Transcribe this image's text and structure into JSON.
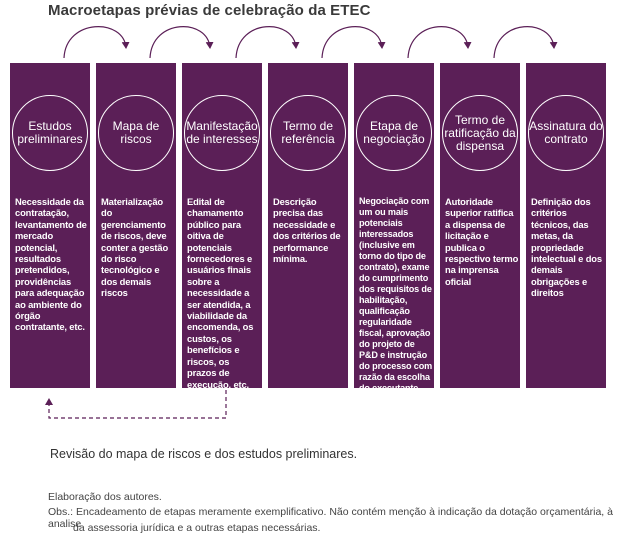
{
  "title": "Macroetapas prévias de celebração da ETEC",
  "steps": [
    {
      "heading": "Estudos preliminares",
      "body": "Necessidade da contratação, levantamento de mercado potencial, resultados pretendidos, providências para adequação ao ambiente do órgão contratante, etc."
    },
    {
      "heading": "Mapa de riscos",
      "body": "Materialização do gerenciamento de riscos, deve conter a gestão do risco tecnológico e dos demais riscos"
    },
    {
      "heading": "Manifestação de interesses",
      "body": "Edital de chamamento público para oitiva de potenciais fornecedores e usuários finais sobre a necessidade a ser atendida, a viabilidade da encomenda, os custos, os benefícios e riscos, os prazos de execução, etc."
    },
    {
      "heading": "Termo de referência",
      "body": "Descrição precisa das necessidade e dos critérios de performance mínima."
    },
    {
      "heading": "Etapa de negociação",
      "body": "Negociação com um ou mais potenciais interessados (inclusive em torno do tipo de contrato), exame do cumprimento dos requisitos de habilitação, qualificação regularidade fiscal, aprovação do projeto de P&D e instrução do processo com razão da escolha do executante"
    },
    {
      "heading": "Termo de ratificação da dispensa",
      "body": "Autoridade superior ratifica a dispensa de licitação e publica o respectivo termo na imprensa oficial"
    },
    {
      "heading": "Assinatura do contrato",
      "body": "Definição dos critérios técnicos, das metas, da propriedade intelectual e dos demais obrigações e direitos"
    }
  ],
  "feedback_label": "Revisão do mapa de riscos e dos estudos preliminares.",
  "source": "Elaboração dos autores.",
  "notes": {
    "line1": "Obs.: Encadeamento de etapas meramente exemplificativo. Não contém menção à indicação da dotação orçamentária, à analise",
    "line2": "da assessoria jurídica e a outras etapas necessárias."
  },
  "colors": {
    "box_fill": "#5b1f57",
    "arrow": "#5b1f57",
    "text_on_box": "#ffffff"
  }
}
